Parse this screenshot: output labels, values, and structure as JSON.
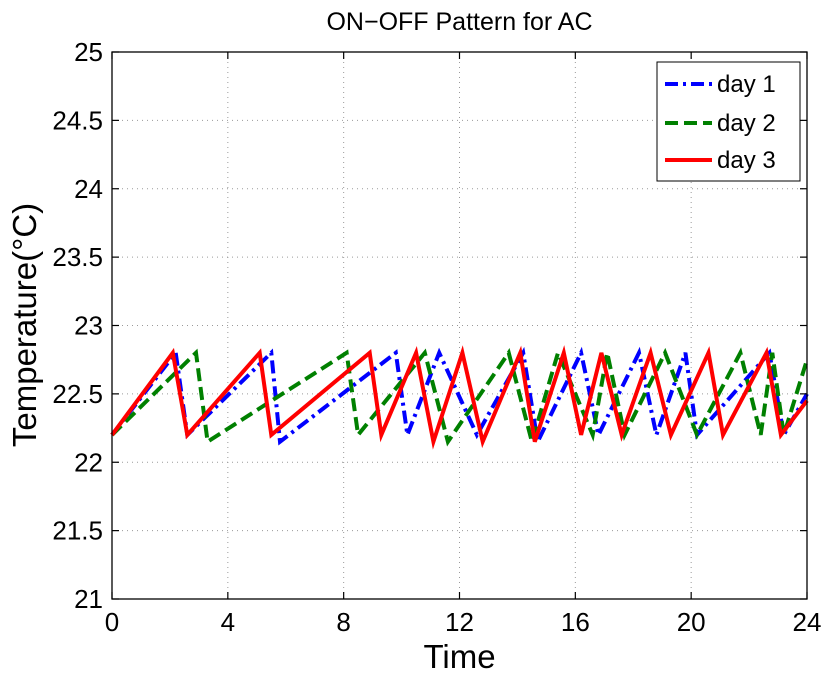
{
  "chart_data": {
    "type": "line",
    "title": "ON−OFF Pattern for AC",
    "xlabel": "Time",
    "ylabel": "Temperature(°C)",
    "xlim": [
      0,
      24
    ],
    "ylim": [
      21,
      25
    ],
    "xticks": [
      0,
      4,
      8,
      12,
      16,
      20,
      24
    ],
    "xtick_labels": [
      "0",
      "4",
      "8",
      "12",
      "16",
      "20",
      "24"
    ],
    "yticks": [
      21,
      21.5,
      22,
      22.5,
      23,
      23.5,
      24,
      24.5,
      25
    ],
    "ytick_labels": [
      "21",
      "21.5",
      "22",
      "22.5",
      "23",
      "23.5",
      "24",
      "24.5",
      "25"
    ],
    "grid": true,
    "legend_position": "top-right",
    "series": [
      {
        "name": "day 1",
        "color": "#0000ff",
        "style": "dashdot",
        "points": [
          [
            0,
            22.2
          ],
          [
            2.2,
            22.8
          ],
          [
            2.6,
            22.2
          ],
          [
            5.5,
            22.8
          ],
          [
            5.8,
            22.15
          ],
          [
            9.8,
            22.8
          ],
          [
            10.2,
            22.2
          ],
          [
            11.3,
            22.8
          ],
          [
            12.6,
            22.2
          ],
          [
            14.2,
            22.8
          ],
          [
            14.7,
            22.15
          ],
          [
            16.2,
            22.8
          ],
          [
            16.8,
            22.2
          ],
          [
            18.2,
            22.8
          ],
          [
            18.8,
            22.2
          ],
          [
            19.8,
            22.8
          ],
          [
            20.2,
            22.2
          ],
          [
            22.7,
            22.8
          ],
          [
            23.2,
            22.2
          ],
          [
            24,
            22.5
          ]
        ]
      },
      {
        "name": "day 2",
        "color": "#008000",
        "style": "dashed",
        "points": [
          [
            0,
            22.2
          ],
          [
            2.9,
            22.8
          ],
          [
            3.3,
            22.15
          ],
          [
            8.1,
            22.8
          ],
          [
            8.5,
            22.2
          ],
          [
            10.8,
            22.8
          ],
          [
            11.6,
            22.15
          ],
          [
            13.7,
            22.8
          ],
          [
            14.5,
            22.15
          ],
          [
            15.4,
            22.8
          ],
          [
            16.6,
            22.2
          ],
          [
            17.1,
            22.8
          ],
          [
            17.7,
            22.2
          ],
          [
            19.1,
            22.8
          ],
          [
            20.2,
            22.2
          ],
          [
            21.7,
            22.8
          ],
          [
            22.4,
            22.2
          ],
          [
            22.8,
            22.8
          ],
          [
            23.2,
            22.2
          ],
          [
            24,
            22.75
          ]
        ]
      },
      {
        "name": "day 3",
        "color": "#ff0000",
        "style": "solid",
        "points": [
          [
            0,
            22.2
          ],
          [
            2.1,
            22.8
          ],
          [
            2.6,
            22.2
          ],
          [
            5.1,
            22.8
          ],
          [
            5.5,
            22.2
          ],
          [
            8.9,
            22.8
          ],
          [
            9.3,
            22.2
          ],
          [
            10.5,
            22.8
          ],
          [
            11.1,
            22.15
          ],
          [
            12.1,
            22.8
          ],
          [
            12.8,
            22.15
          ],
          [
            14.1,
            22.8
          ],
          [
            14.6,
            22.15
          ],
          [
            15.6,
            22.8
          ],
          [
            16.2,
            22.2
          ],
          [
            16.9,
            22.8
          ],
          [
            17.6,
            22.2
          ],
          [
            18.6,
            22.8
          ],
          [
            19.3,
            22.2
          ],
          [
            20.6,
            22.8
          ],
          [
            21.1,
            22.2
          ],
          [
            22.6,
            22.8
          ],
          [
            23.1,
            22.2
          ],
          [
            24,
            22.45
          ]
        ]
      }
    ]
  }
}
